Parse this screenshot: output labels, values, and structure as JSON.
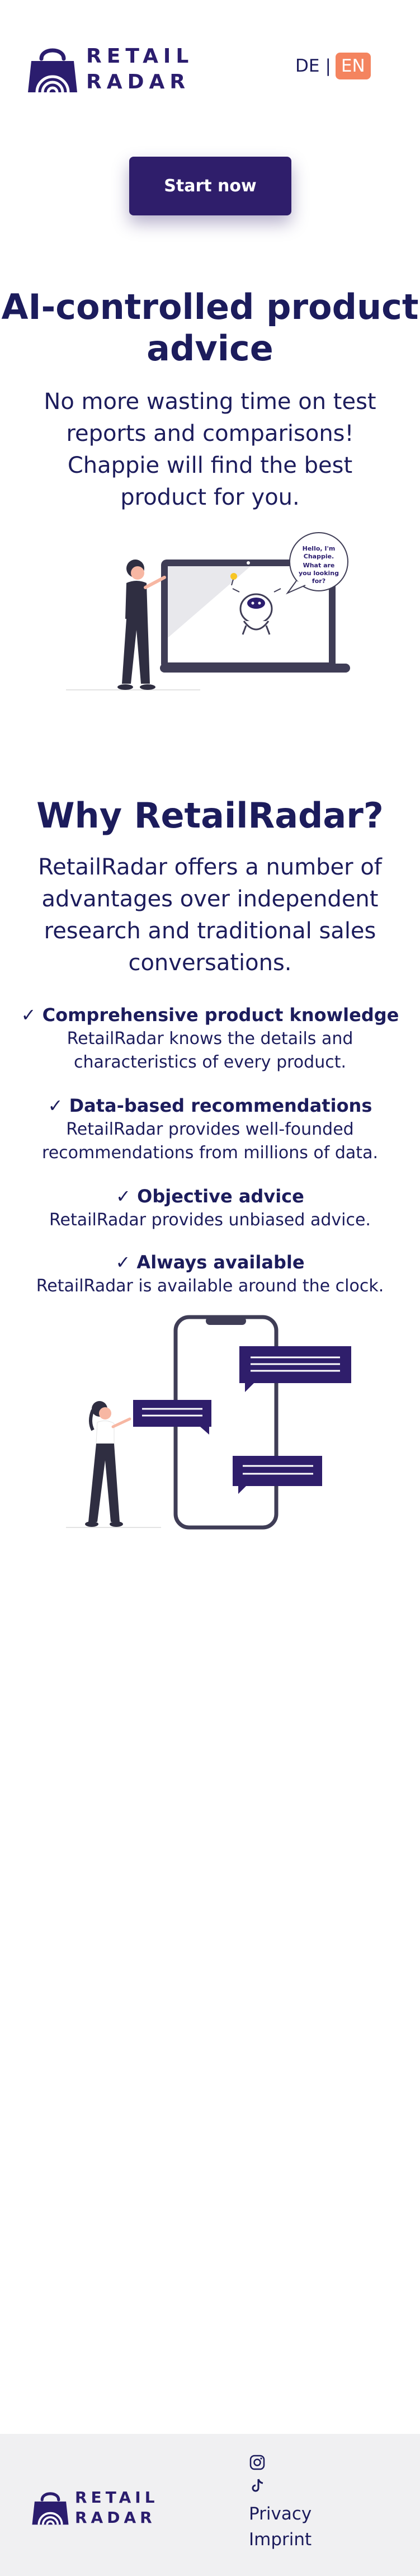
{
  "header": {
    "logo_text_line1": "RETAIL",
    "logo_text_line2": "RADAR",
    "lang_de": "DE",
    "lang_separator": "|",
    "lang_en": "EN"
  },
  "hero": {
    "cta_label": "Start now",
    "title": "AI-controlled product advice",
    "subtitle": "No more wasting time on test reports and comparisons! Chappie will find the best product for you.",
    "speech_bubble_line1": "Hello, I'm",
    "speech_bubble_line2": "Chappie.",
    "speech_bubble_line3": "What are",
    "speech_bubble_line4": "you looking",
    "speech_bubble_line5": "for?"
  },
  "why": {
    "title": "Why RetailRadar?",
    "subtitle": "RetailRadar offers a number of advantages over independent research and traditional sales conversations.",
    "features": [
      {
        "title": "✓ Comprehensive product knowledge",
        "desc": "RetailRadar knows the details and characteristics of every product."
      },
      {
        "title": "✓ Data-based recommendations",
        "desc": "RetailRadar provides well-founded recommendations from millions of data."
      },
      {
        "title": "✓ Objective advice",
        "desc": "RetailRadar provides unbiased advice."
      },
      {
        "title": "✓ Always available",
        "desc": "RetailRadar is available around the clock."
      }
    ]
  },
  "footer": {
    "logo_text_line1": "RETAIL",
    "logo_text_line2": "RADAR",
    "icons": [
      "instagram-icon",
      "tiktok-icon"
    ],
    "links": [
      "Privacy",
      "Imprint"
    ]
  },
  "colors": {
    "brand": "#2f1e6b",
    "text": "#1c1c5c",
    "accent": "#f4845f",
    "footer_bg": "#f0f0f2"
  }
}
